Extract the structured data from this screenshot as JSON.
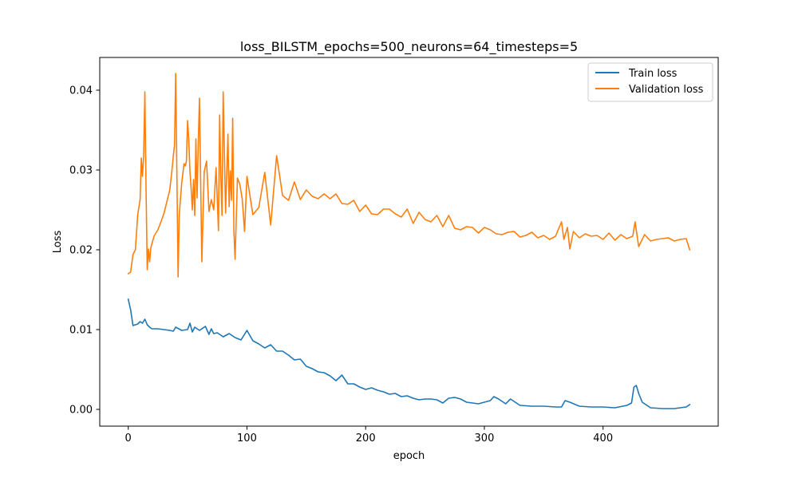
{
  "chart_data": {
    "type": "line",
    "title": "loss_BILSTM_epochs=500_neurons=64_timesteps=5",
    "xlabel": "epoch",
    "ylabel": "Loss",
    "xlim": [
      -24,
      497
    ],
    "ylim": [
      -0.0021,
      0.0441
    ],
    "xticks": [
      0,
      100,
      200,
      300,
      400
    ],
    "yticks": [
      0.0,
      0.01,
      0.02,
      0.03,
      0.04
    ],
    "xtick_labels": [
      "0",
      "100",
      "200",
      "300",
      "400"
    ],
    "ytick_labels": [
      "0.00",
      "0.01",
      "0.02",
      "0.03",
      "0.04"
    ],
    "grid": false,
    "legend_position": "top-right",
    "series": [
      {
        "name": "Train loss",
        "color": "#1f77b4",
        "x": [
          0,
          2,
          4,
          6,
          8,
          10,
          12,
          14,
          16,
          18,
          20,
          25,
          30,
          35,
          38,
          40,
          45,
          50,
          52,
          54,
          56,
          60,
          65,
          68,
          70,
          72,
          75,
          80,
          85,
          90,
          95,
          100,
          105,
          110,
          115,
          120,
          125,
          130,
          135,
          140,
          145,
          150,
          155,
          160,
          165,
          170,
          175,
          180,
          185,
          190,
          195,
          200,
          205,
          210,
          215,
          220,
          225,
          230,
          235,
          240,
          245,
          250,
          255,
          260,
          265,
          270,
          275,
          280,
          285,
          290,
          295,
          300,
          305,
          308,
          312,
          318,
          322,
          330,
          340,
          350,
          360,
          365,
          368,
          372,
          380,
          390,
          400,
          410,
          420,
          424,
          426,
          428,
          430,
          433,
          440,
          450,
          460,
          470,
          473
        ],
        "y": [
          0.0138,
          0.0125,
          0.0105,
          0.0106,
          0.0107,
          0.011,
          0.0108,
          0.0113,
          0.0106,
          0.0103,
          0.0101,
          0.0101,
          0.01,
          0.0099,
          0.0098,
          0.0103,
          0.0099,
          0.01,
          0.0108,
          0.0097,
          0.0103,
          0.0099,
          0.0104,
          0.0094,
          0.0101,
          0.0095,
          0.0096,
          0.0091,
          0.0095,
          0.009,
          0.0087,
          0.0099,
          0.0086,
          0.0082,
          0.0077,
          0.0081,
          0.0073,
          0.0073,
          0.0068,
          0.0062,
          0.0063,
          0.0054,
          0.0051,
          0.0047,
          0.0046,
          0.0042,
          0.0036,
          0.0043,
          0.0032,
          0.0032,
          0.0028,
          0.0025,
          0.0027,
          0.0024,
          0.0022,
          0.0019,
          0.002,
          0.0016,
          0.0017,
          0.0014,
          0.0012,
          0.0013,
          0.0013,
          0.0012,
          0.0008,
          0.0014,
          0.0015,
          0.0013,
          0.0009,
          0.0008,
          0.0007,
          0.0009,
          0.0011,
          0.0016,
          0.0013,
          0.0007,
          0.0013,
          0.0005,
          0.0004,
          0.0004,
          0.0003,
          0.0003,
          0.0011,
          0.0009,
          0.0004,
          0.0003,
          0.0003,
          0.0002,
          0.0005,
          0.0008,
          0.0028,
          0.003,
          0.002,
          0.0009,
          0.0002,
          0.0001,
          0.0001,
          0.0003,
          0.0006
        ]
      },
      {
        "name": "Validation loss",
        "color": "#ff7f0e",
        "x": [
          0,
          2,
          4,
          6,
          8,
          10,
          11,
          12,
          13,
          14,
          15,
          16,
          17,
          18,
          19,
          20,
          22,
          25,
          30,
          35,
          37,
          38,
          39,
          40,
          42,
          43,
          45,
          47,
          48,
          49,
          50,
          51,
          52,
          53,
          54,
          55,
          56,
          57,
          58,
          59,
          60,
          62,
          64,
          66,
          68,
          70,
          72,
          74,
          76,
          77,
          78,
          79,
          80,
          82,
          84,
          85,
          86,
          87,
          88,
          89,
          90,
          92,
          94,
          96,
          98,
          100,
          105,
          110,
          115,
          120,
          125,
          130,
          135,
          140,
          145,
          150,
          155,
          160,
          165,
          170,
          175,
          180,
          185,
          190,
          195,
          200,
          205,
          210,
          215,
          220,
          225,
          230,
          235,
          240,
          245,
          250,
          255,
          260,
          265,
          270,
          275,
          280,
          285,
          290,
          295,
          300,
          305,
          310,
          315,
          320,
          325,
          330,
          335,
          340,
          345,
          350,
          355,
          360,
          365,
          367,
          370,
          372,
          375,
          380,
          385,
          390,
          395,
          400,
          405,
          410,
          415,
          420,
          425,
          427,
          430,
          435,
          440,
          445,
          450,
          455,
          460,
          465,
          470,
          473
        ],
        "y": [
          0.017,
          0.0172,
          0.0194,
          0.02,
          0.0244,
          0.0263,
          0.0315,
          0.0292,
          0.0318,
          0.0398,
          0.0277,
          0.0175,
          0.0201,
          0.0185,
          0.0202,
          0.0208,
          0.0218,
          0.0225,
          0.0245,
          0.0275,
          0.0302,
          0.0318,
          0.0331,
          0.0421,
          0.0166,
          0.0244,
          0.0283,
          0.0308,
          0.0305,
          0.0311,
          0.0362,
          0.0338,
          0.0298,
          0.0277,
          0.025,
          0.0288,
          0.0243,
          0.0339,
          0.0265,
          0.0333,
          0.039,
          0.0185,
          0.0298,
          0.0311,
          0.0248,
          0.0263,
          0.025,
          0.0303,
          0.0224,
          0.0369,
          0.0293,
          0.0243,
          0.0398,
          0.0246,
          0.0345,
          0.0254,
          0.0299,
          0.0262,
          0.0365,
          0.0224,
          0.0188,
          0.029,
          0.0282,
          0.0264,
          0.0223,
          0.0292,
          0.0244,
          0.0253,
          0.0297,
          0.0231,
          0.0318,
          0.0268,
          0.0262,
          0.0285,
          0.0263,
          0.0275,
          0.0267,
          0.0264,
          0.027,
          0.0264,
          0.027,
          0.0258,
          0.0257,
          0.0262,
          0.0248,
          0.0256,
          0.0245,
          0.0244,
          0.0251,
          0.0251,
          0.0245,
          0.0241,
          0.0251,
          0.0233,
          0.0247,
          0.0238,
          0.0235,
          0.0243,
          0.0229,
          0.0243,
          0.0227,
          0.0225,
          0.0229,
          0.0228,
          0.0221,
          0.0228,
          0.0225,
          0.022,
          0.0219,
          0.0222,
          0.0223,
          0.0216,
          0.0218,
          0.0222,
          0.0215,
          0.0218,
          0.0213,
          0.0217,
          0.0235,
          0.0213,
          0.0228,
          0.0201,
          0.0223,
          0.0215,
          0.022,
          0.0217,
          0.0218,
          0.0213,
          0.0221,
          0.0212,
          0.0219,
          0.0214,
          0.0217,
          0.0235,
          0.0204,
          0.0219,
          0.0211,
          0.0213,
          0.0214,
          0.0215,
          0.0211,
          0.0213,
          0.0214,
          0.02
        ]
      }
    ]
  }
}
